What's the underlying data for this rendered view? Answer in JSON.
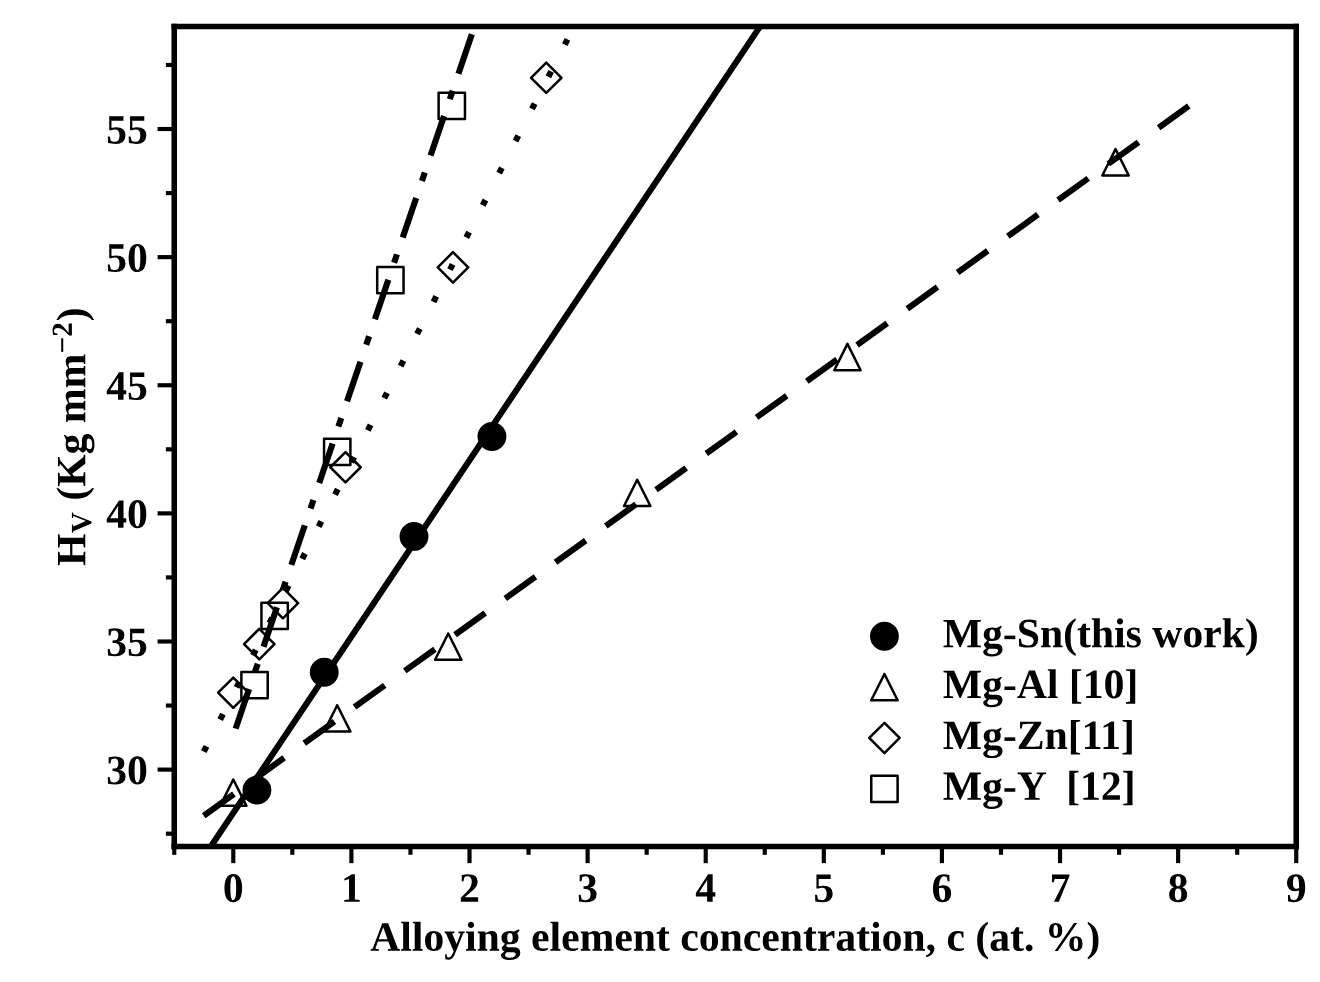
{
  "chart_data": {
    "type": "scatter",
    "xlabel": "Alloying element concentration, c (at. %)",
    "ylabel": "H$_{V}$ (Kg mm$^{−2}$)",
    "xlim": [
      -0.5,
      9
    ],
    "ylim": [
      27,
      59
    ],
    "xticks": [
      0,
      1,
      2,
      3,
      4,
      5,
      6,
      7,
      8,
      9
    ],
    "yticks": [
      30,
      35,
      40,
      45,
      50,
      55
    ],
    "grid": false,
    "legend": "bottom right",
    "series": [
      {
        "name": "Mg-Sn(this work)",
        "marker": "circle",
        "color": "#000000",
        "x": [
          0.2,
          0.77,
          1.53,
          2.19
        ],
        "values": [
          29.2,
          33.8,
          39.1,
          43.0
        ]
      },
      {
        "name": "Mg-Al [10]",
        "marker": "triangle",
        "color": "#000000",
        "x": [
          0,
          0.88,
          1.82,
          3.42,
          5.2,
          7.47
        ],
        "values": [
          29.1,
          32.0,
          34.8,
          40.8,
          46.1,
          53.7
        ]
      },
      {
        "name": "Mg-Zn[11]",
        "marker": "diamond",
        "color": "#000000",
        "x": [
          0,
          0.22,
          0.42,
          0.95,
          1.86,
          2.65
        ],
        "values": [
          33.0,
          34.9,
          36.5,
          41.8,
          49.6,
          57.0
        ]
      },
      {
        "name": "Mg-Y  [12]",
        "marker": "square",
        "color": "#000000",
        "x": [
          0.18,
          0.35,
          0.88,
          1.33,
          1.85
        ],
        "values": [
          33.3,
          36.0,
          42.4,
          49.1,
          55.9
        ]
      },
      {
        "type": "line",
        "line_style": "solid",
        "color": "#000000",
        "x": [
          -0.19,
          4.46
        ],
        "values": [
          27.0,
          59.0
        ]
      },
      {
        "type": "line",
        "line_style": "dashed",
        "color": "#000000",
        "x": [
          -0.25,
          8.09
        ],
        "values": [
          28.2,
          55.9
        ]
      },
      {
        "type": "line",
        "line_style": "dotted",
        "color": "#000000",
        "x": [
          -0.25,
          2.83
        ],
        "values": [
          30.7,
          58.5
        ]
      },
      {
        "type": "line",
        "line_style": "dashdot",
        "color": "#000000",
        "x": [
          0.02,
          2.02
        ],
        "values": [
          31.6,
          58.7
        ]
      }
    ]
  }
}
